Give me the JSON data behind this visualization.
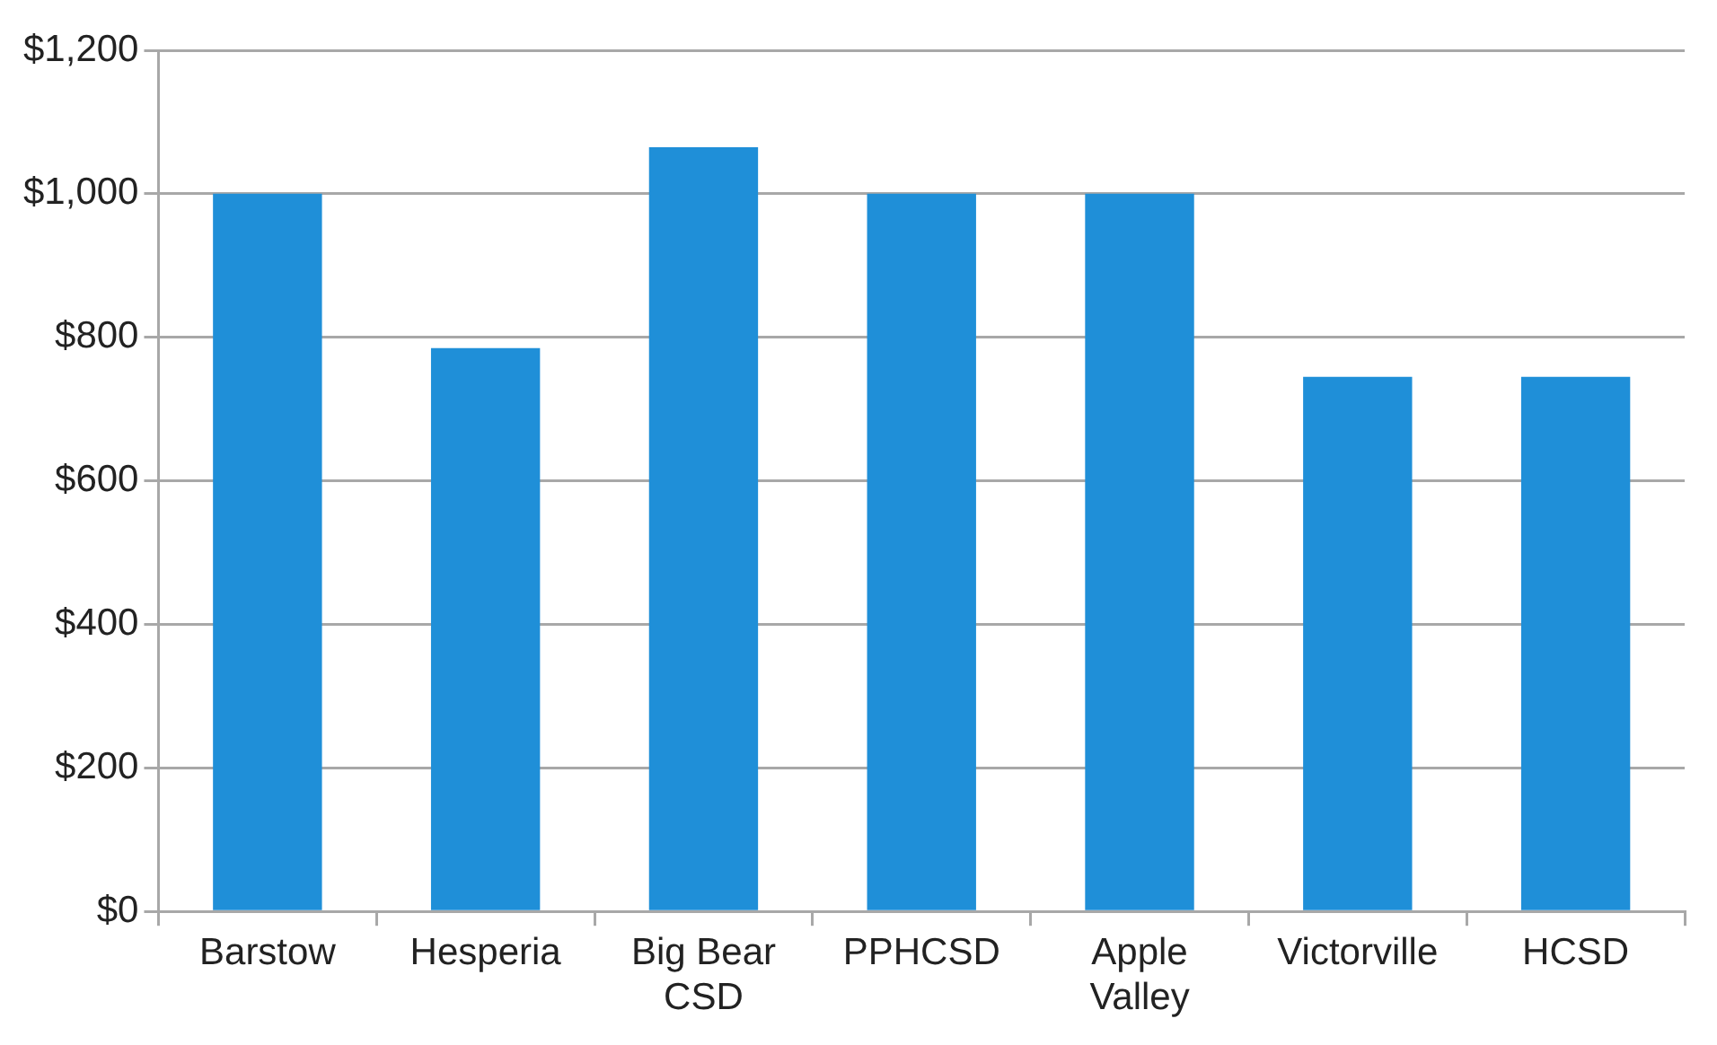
{
  "chart_data": {
    "type": "bar",
    "categories": [
      "Barstow",
      "Hesperia",
      "Big Bear CSD",
      "PPHCSD",
      "Apple Valley",
      "Victorville",
      "HCSD"
    ],
    "values": [
      1000,
      785,
      1065,
      1000,
      1000,
      745,
      745
    ],
    "color": "#1f8fd8",
    "ylim": [
      0,
      1200
    ],
    "yticks": [
      {
        "value": 0,
        "label": "$0"
      },
      {
        "value": 200,
        "label": "$200"
      },
      {
        "value": 400,
        "label": "$400"
      },
      {
        "value": 600,
        "label": "$600"
      },
      {
        "value": 800,
        "label": "$800"
      },
      {
        "value": 1000,
        "label": "$1,000"
      },
      {
        "value": 1200,
        "label": "$1,200"
      }
    ],
    "grid": "y",
    "legend": false
  }
}
